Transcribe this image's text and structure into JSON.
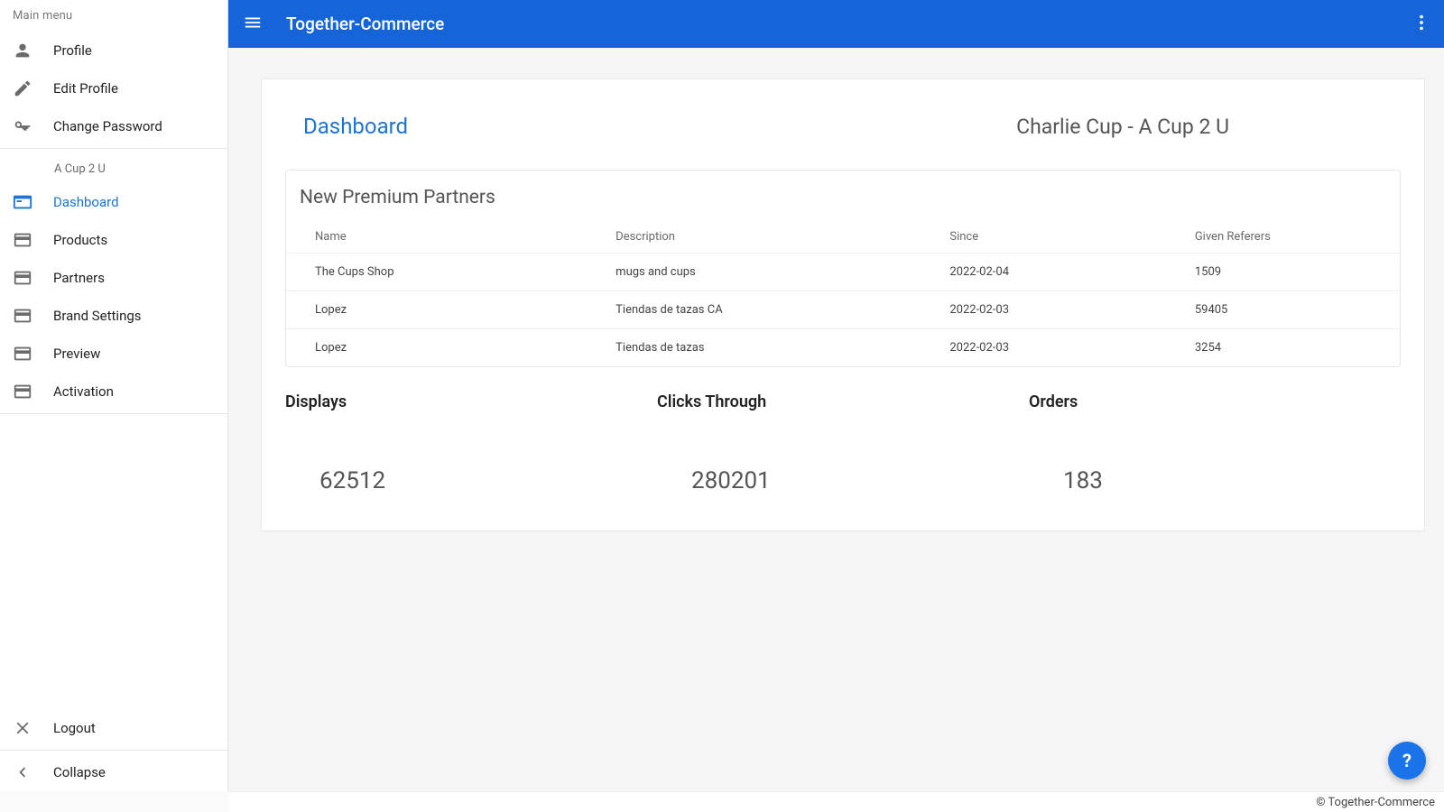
{
  "appTitle": "Together-Commerce",
  "sidebar": {
    "header": "Main menu",
    "profile": "Profile",
    "editProfile": "Edit Profile",
    "changePassword": "Change Password",
    "brandName": "A Cup 2 U",
    "dashboard": "Dashboard",
    "products": "Products",
    "partners": "Partners",
    "brandSettings": "Brand Settings",
    "preview": "Preview",
    "activation": "Activation",
    "logout": "Logout",
    "collapse": "Collapse"
  },
  "page": {
    "title": "Dashboard",
    "userInfo": "Charlie Cup - A Cup 2 U"
  },
  "partnersPanel": {
    "title": "New Premium Partners",
    "columns": {
      "name": "Name",
      "desc": "Description",
      "since": "Since",
      "referers": "Given Referers"
    },
    "rows": [
      {
        "name": "The Cups Shop",
        "desc": "mugs and cups",
        "since": "2022-02-04",
        "referers": "1509"
      },
      {
        "name": "Lopez",
        "desc": "Tiendas de tazas CA",
        "since": "2022-02-03",
        "referers": "59405"
      },
      {
        "name": "Lopez",
        "desc": "Tiendas de tazas",
        "since": "2022-02-03",
        "referers": "3254"
      }
    ]
  },
  "stats": {
    "displays": {
      "label": "Displays",
      "value": "62512"
    },
    "clicks": {
      "label": "Clicks Through",
      "value": "280201"
    },
    "orders": {
      "label": "Orders",
      "value": "183"
    }
  },
  "footer": "© Together-Commerce",
  "fab": "?",
  "colors": {
    "primary": "#1565d8",
    "accentText": "#1f74d0",
    "fab": "#1a73e8"
  }
}
